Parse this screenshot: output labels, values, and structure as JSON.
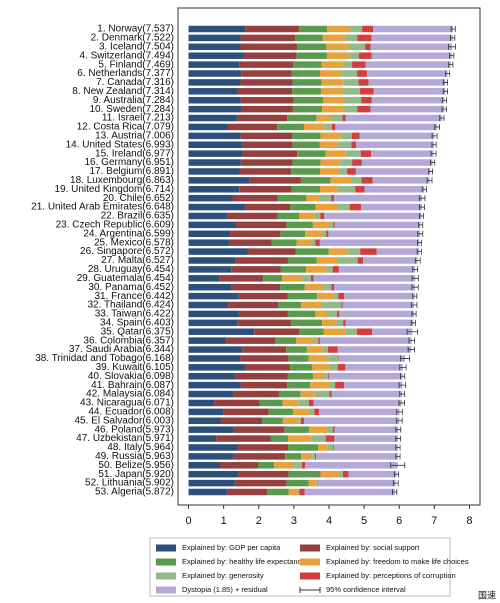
{
  "chart_data": {
    "type": "stacked-barh",
    "categories": [
      "1. Norway(7.537)",
      "2. Denmark(7.522)",
      "3. Iceland(7.504)",
      "4. Switzerland(7.494)",
      "5. Finland(7.469)",
      "6. Netherlands(7.377)",
      "7. Canada(7.316)",
      "8. New Zealand(7.314)",
      "9. Australia(7.284)",
      "10. Sweden(7.284)",
      "11. Israel(7.213)",
      "12. Costa Rica(7.079)",
      "13. Austria(7.006)",
      "14. United States(6.993)",
      "15. Ireland(6.977)",
      "16. Germany(6.951)",
      "17. Belgium(6.891)",
      "18. Luxembourg(6.863)",
      "19. United Kingdom(6.714)",
      "20. Chile(6.652)",
      "21. United Arab Emirates(6.648)",
      "22. Brazil(6.635)",
      "23. Czech Republic(6.609)",
      "24. Argentina(6.599)",
      "25. Mexico(6.578)",
      "26. Singapore(6.572)",
      "27. Malta(6.527)",
      "28. Uruguay(6.454)",
      "29. Guatemala(6.454)",
      "30. Panama(6.452)",
      "31. France(6.442)",
      "32. Thailand(6.424)",
      "33. Taiwan(6.422)",
      "34. Spain(6.403)",
      "35. Qatar(6.375)",
      "36. Colombia(6.357)",
      "37. Saudi Arabia(6.344)",
      "38. Trinidad and Tobago(6.168)",
      "39. Kuwait(6.105)",
      "40. Slovakia(6.098)",
      "41. Bahrain(6.087)",
      "42. Malaysia(6.084)",
      "43. Nicaragua(6.071)",
      "44. Ecuador(6.008)",
      "45. El Salvador(6.003)",
      "46. Poland(5.973)",
      "47. Uzbekistan(5.971)",
      "48. Italy(5.964)",
      "49. Russia(5.963)",
      "50. Belize(5.956)",
      "51. Japan(5.920)",
      "52. Lithuania(5.902)",
      "53. Algeria(5.872)"
    ],
    "series": [
      {
        "name": "Explained by: GDP per capita",
        "color": "#2c4f7c",
        "values": [
          1.616,
          1.482,
          1.481,
          1.565,
          1.444,
          1.504,
          1.479,
          1.406,
          1.484,
          1.494,
          1.376,
          1.11,
          1.488,
          1.546,
          1.535,
          1.488,
          1.464,
          1.742,
          1.442,
          1.252,
          1.627,
          1.107,
          1.353,
          1.185,
          1.153,
          1.692,
          1.343,
          1.218,
          0.873,
          1.233,
          1.431,
          1.128,
          1.434,
          1.384,
          1.871,
          1.071,
          1.531,
          1.477,
          1.633,
          1.325,
          1.489,
          1.291,
          0.737,
          1.001,
          0.91,
          1.292,
          0.786,
          1.395,
          1.286,
          0.908,
          1.417,
          1.315,
          1.092
        ]
      },
      {
        "name": "Explained by: social support",
        "color": "#95403f",
        "values": [
          1.534,
          1.551,
          1.611,
          1.517,
          1.54,
          1.429,
          1.481,
          1.548,
          1.51,
          1.478,
          1.434,
          1.417,
          1.46,
          1.42,
          1.558,
          1.473,
          1.462,
          1.458,
          1.497,
          1.284,
          1.266,
          1.432,
          1.434,
          1.44,
          1.211,
          1.354,
          1.488,
          1.412,
          1.256,
          1.373,
          1.388,
          1.426,
          1.384,
          1.532,
          1.274,
          1.402,
          1.25,
          1.374,
          1.26,
          1.505,
          1.323,
          1.284,
          1.287,
          1.286,
          1.182,
          1.446,
          1.548,
          1.445,
          1.469,
          1.081,
          1.436,
          1.473,
          1.146
        ]
      },
      {
        "name": "Explained by: healthy life expectancy",
        "color": "#5a9a4c",
        "values": [
          0.797,
          0.793,
          0.834,
          0.858,
          0.809,
          0.811,
          0.835,
          0.817,
          0.844,
          0.831,
          0.84,
          0.76,
          0.816,
          0.774,
          0.81,
          0.799,
          0.818,
          0.845,
          0.806,
          0.819,
          0.726,
          0.617,
          0.754,
          0.695,
          0.71,
          0.949,
          0.821,
          0.719,
          0.541,
          0.706,
          0.844,
          0.647,
          0.794,
          0.889,
          0.71,
          0.595,
          0.59,
          0.571,
          0.632,
          0.713,
          0.654,
          0.619,
          0.653,
          0.686,
          0.596,
          0.699,
          0.498,
          0.853,
          0.453,
          0.45,
          0.913,
          0.629,
          0.618
        ]
      },
      {
        "name": "Explained by: freedom to make life choices",
        "color": "#e9a23b",
        "values": [
          0.635,
          0.626,
          0.627,
          0.62,
          0.618,
          0.585,
          0.611,
          0.614,
          0.602,
          0.613,
          0.406,
          0.58,
          0.567,
          0.505,
          0.573,
          0.563,
          0.54,
          0.597,
          0.509,
          0.377,
          0.608,
          0.437,
          0.491,
          0.494,
          0.413,
          0.55,
          0.589,
          0.579,
          0.531,
          0.55,
          0.47,
          0.58,
          0.361,
          0.409,
          0.604,
          0.477,
          0.45,
          0.555,
          0.496,
          0.296,
          0.536,
          0.402,
          0.448,
          0.456,
          0.432,
          0.52,
          0.658,
          0.256,
          0.314,
          0.548,
          0.506,
          0.234,
          0.233
        ]
      },
      {
        "name": "Explained by: generosity",
        "color": "#92b98b",
        "values": [
          0.362,
          0.355,
          0.476,
          0.291,
          0.245,
          0.47,
          0.436,
          0.5,
          0.478,
          0.385,
          0.33,
          0.215,
          0.317,
          0.393,
          0.428,
          0.336,
          0.231,
          0.283,
          0.493,
          0.327,
          0.361,
          0.162,
          0.088,
          0.109,
          0.12,
          0.346,
          0.575,
          0.176,
          0.283,
          0.211,
          0.13,
          0.572,
          0.258,
          0.19,
          0.331,
          0.149,
          0.148,
          0.296,
          0.228,
          0.137,
          0.172,
          0.417,
          0.302,
          0.152,
          0.078,
          0.158,
          0.416,
          0.173,
          0.082,
          0.24,
          0.121,
          0.01,
          0.069
        ]
      },
      {
        "name": "Explained by: perceptions of corruption",
        "color": "#d33d3f",
        "values": [
          0.316,
          0.401,
          0.154,
          0.367,
          0.383,
          0.283,
          0.287,
          0.383,
          0.301,
          0.384,
          0.085,
          0.1,
          0.221,
          0.136,
          0.298,
          0.277,
          0.251,
          0.319,
          0.265,
          0.082,
          0.324,
          0.111,
          0.037,
          0.06,
          0.132,
          0.464,
          0.154,
          0.178,
          0.077,
          0.071,
          0.173,
          0.031,
          0.064,
          0.071,
          0.44,
          0.047,
          0.273,
          0.015,
          0.216,
          0.024,
          0.257,
          0.066,
          0.13,
          0.14,
          0.089,
          0.046,
          0.247,
          0.028,
          0.03,
          0.097,
          0.164,
          0.012,
          0.146
        ]
      },
      {
        "name": "Dystopia (1.85) + residual",
        "color": "#b3a8d8",
        "values": [
          2.277,
          2.314,
          2.322,
          2.277,
          2.43,
          2.295,
          2.187,
          2.046,
          2.065,
          2.097,
          2.742,
          2.898,
          2.137,
          2.218,
          1.775,
          2.015,
          2.125,
          1.619,
          1.703,
          2.511,
          1.734,
          2.769,
          2.452,
          2.616,
          2.838,
          1.217,
          1.557,
          2.172,
          2.894,
          2.307,
          2.006,
          2.04,
          2.126,
          1.928,
          1.145,
          2.616,
          2.101,
          1.879,
          1.64,
          2.097,
          1.657,
          2.005,
          2.515,
          2.287,
          2.716,
          1.812,
          1.818,
          1.814,
          2.329,
          2.633,
          1.364,
          2.228,
          2.567
        ]
      }
    ],
    "ci_name": "95% confidence interval",
    "errors": [
      0.06,
      0.06,
      0.1,
      0.06,
      0.06,
      0.06,
      0.06,
      0.06,
      0.06,
      0.06,
      0.06,
      0.07,
      0.07,
      0.06,
      0.07,
      0.06,
      0.06,
      0.07,
      0.06,
      0.08,
      0.07,
      0.06,
      0.06,
      0.07,
      0.06,
      0.06,
      0.07,
      0.07,
      0.09,
      0.09,
      0.06,
      0.08,
      0.06,
      0.06,
      0.15,
      0.08,
      0.09,
      0.13,
      0.09,
      0.06,
      0.09,
      0.07,
      0.08,
      0.08,
      0.08,
      0.07,
      0.07,
      0.06,
      0.06,
      0.2,
      0.06,
      0.07,
      0.06
    ],
    "xlim": [
      -0.3,
      8.3
    ],
    "xticks": [
      0,
      1,
      2,
      3,
      4,
      5,
      6,
      7,
      8
    ],
    "watermark": "国速"
  }
}
